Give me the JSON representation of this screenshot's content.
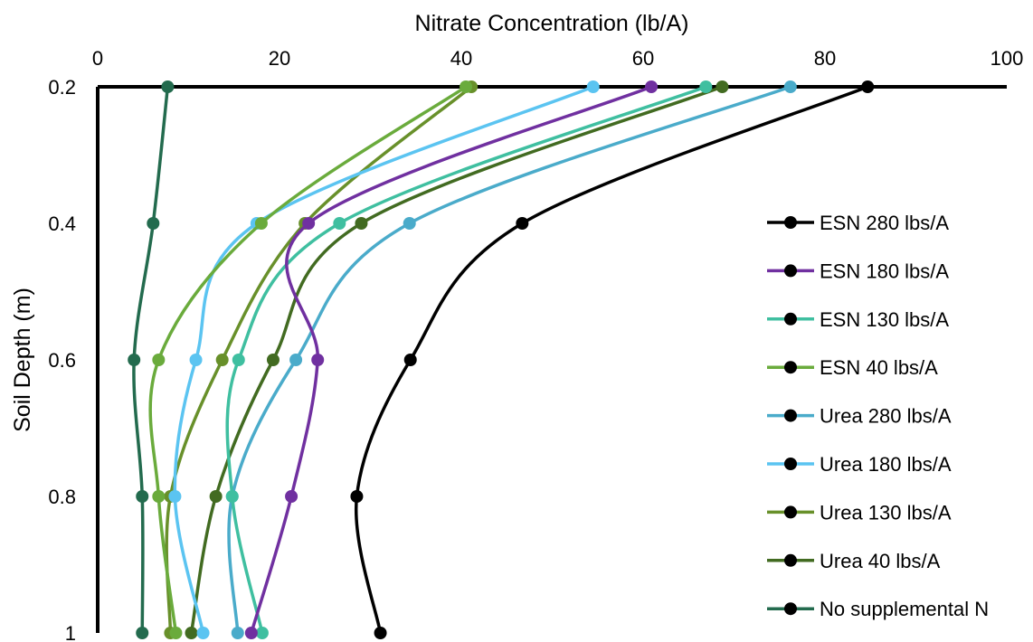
{
  "chart_data": {
    "type": "line",
    "title": "",
    "xlabel": "Nitrate Concentration (lb/A)",
    "ylabel": "Soil Depth (m)",
    "xlim": [
      0,
      100
    ],
    "ylim": [
      0.2,
      1
    ],
    "y_reversed": true,
    "x_axis_position": "top",
    "x_ticks": [
      "0",
      "20",
      "40",
      "60",
      "80",
      "100"
    ],
    "y_ticks": [
      "0.2",
      "0.4",
      "0.6",
      "0.8",
      "1"
    ],
    "y": [
      0.2,
      0.4,
      0.6,
      0.8,
      1.0
    ],
    "grid": false,
    "legend": "right",
    "series": [
      {
        "name": "ESN 280 lbs/A",
        "color": "#000000",
        "values": [
          84.7,
          46.7,
          34.4,
          28.5,
          31.1
        ]
      },
      {
        "name": "ESN 180 lbs/A",
        "color": "#7030a0",
        "values": [
          60.9,
          23.2,
          24.2,
          21.3,
          16.9
        ]
      },
      {
        "name": "ESN 130 lbs/A",
        "color": "#3fbfa0",
        "values": [
          66.9,
          26.6,
          15.5,
          14.8,
          18.1
        ]
      },
      {
        "name": "ESN 40 lbs/A",
        "color": "#6aab3c",
        "values": [
          40.5,
          18.0,
          6.7,
          6.7,
          8.6
        ]
      },
      {
        "name": "Urea 280 lbs/A",
        "color": "#4aabca",
        "values": [
          76.2,
          34.3,
          21.8,
          14.8,
          15.4
        ]
      },
      {
        "name": "Urea 180 lbs/A",
        "color": "#5bc4f1",
        "values": [
          54.5,
          17.5,
          10.8,
          8.5,
          11.6
        ]
      },
      {
        "name": "Urea 130 lbs/A",
        "color": "#68902a",
        "values": [
          41.1,
          22.8,
          13.7,
          8.0,
          8.0
        ]
      },
      {
        "name": "Urea 40 lbs/A",
        "color": "#426b21",
        "values": [
          68.7,
          29.0,
          19.3,
          13.0,
          10.3
        ]
      },
      {
        "name": "No supplemental N",
        "color": "#236b4e",
        "values": [
          7.7,
          6.1,
          4.0,
          4.9,
          4.9
        ]
      }
    ]
  }
}
